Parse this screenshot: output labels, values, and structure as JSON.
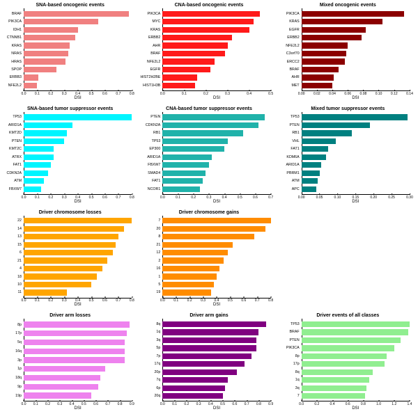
{
  "global": {
    "xlabel": "DSI",
    "background": "#ffffff",
    "title_fontsize": 7,
    "tick_fontsize": 5,
    "label_fontsize": 6,
    "ylabel_fontsize": 5.3
  },
  "panels": [
    {
      "title": "SNA-based oncogenic events",
      "color": "#f08080",
      "xmax": 0.8,
      "xtick_step": 0.1,
      "categories": [
        "BRAF",
        "PIK3CA",
        "IDH1",
        "CTNNB1",
        "KRAS",
        "NRAS",
        "HRAS",
        "SPOP",
        "ERBB3",
        "NFE2L2"
      ],
      "values": [
        0.78,
        0.55,
        0.4,
        0.38,
        0.34,
        0.33,
        0.31,
        0.24,
        0.11,
        0.1
      ]
    },
    {
      "title": "CNA-based oncogenic events",
      "color": "#ff1a1a",
      "xmax": 0.5,
      "xtick_step": 0.1,
      "categories": [
        "PIK3CA",
        "MYC",
        "KRAS",
        "ERBB2",
        "AHR",
        "BRAF",
        "NFE2L2",
        "EGFR",
        "HIST2H2BE",
        "HIST1H3B"
      ],
      "values": [
        0.45,
        0.42,
        0.4,
        0.32,
        0.3,
        0.29,
        0.24,
        0.22,
        0.16,
        0.15
      ]
    },
    {
      "title": "Mixed oncogenic events",
      "color": "#8b0000",
      "xmax": 0.14,
      "xtick_step": 0.02,
      "categories": [
        "PIK3CA",
        "KRAS",
        "EGFR",
        "ERBB2",
        "NFE2L2",
        "C3orf70",
        "ERCC2",
        "BRAF",
        "AHR",
        "MET"
      ],
      "values": [
        0.133,
        0.105,
        0.083,
        0.078,
        0.06,
        0.058,
        0.056,
        0.048,
        0.042,
        0.04
      ]
    },
    {
      "title": "SNA-based tumor suppressor events",
      "color": "#00f5ff",
      "xmax": 0.8,
      "xtick_step": 0.1,
      "categories": [
        "TP53",
        "ARID1A",
        "KMT2D",
        "PTEN",
        "KMT2C",
        "ATRX",
        "FAT1",
        "CDKN2A",
        "ATM",
        "FBXW7"
      ],
      "values": [
        0.8,
        0.36,
        0.32,
        0.3,
        0.22,
        0.22,
        0.2,
        0.18,
        0.15,
        0.13
      ]
    },
    {
      "title": "CNA-based tumor suppressor events",
      "color": "#20b2aa",
      "xmax": 0.7,
      "xtick_step": 0.1,
      "categories": [
        "PTEN",
        "CDKN2A",
        "RB1",
        "TP53",
        "EP300",
        "ARID1A",
        "FBXW7",
        "SMAD4",
        "FAT1",
        "NCOR1"
      ],
      "values": [
        0.66,
        0.62,
        0.52,
        0.42,
        0.4,
        0.32,
        0.3,
        0.28,
        0.26,
        0.24
      ]
    },
    {
      "title": "Mixed tumor suppressor events",
      "color": "#008080",
      "xmax": 0.3,
      "xtick_step": 0.05,
      "categories": [
        "TP53",
        "PTEN",
        "RB1",
        "VHL",
        "FAT1",
        "KDM6A",
        "ARID1A",
        "PBRM1",
        "ATM",
        "APC"
      ],
      "values": [
        0.295,
        0.19,
        0.14,
        0.095,
        0.075,
        0.068,
        0.055,
        0.05,
        0.046,
        0.042
      ]
    },
    {
      "title": "Driver chromosome losses",
      "color": "#ffa500",
      "xmax": 0.8,
      "xtick_step": 0.1,
      "categories": [
        "22",
        "14",
        "13",
        "15",
        "6",
        "21",
        "4",
        "18",
        "10",
        "11"
      ],
      "values": [
        0.8,
        0.74,
        0.7,
        0.68,
        0.66,
        0.62,
        0.58,
        0.54,
        0.5,
        0.32
      ]
    },
    {
      "title": "Driver chromosome gains",
      "color": "#ff8c00",
      "xmax": 0.8,
      "xtick_step": 0.1,
      "categories": [
        "7",
        "20",
        "8",
        "21",
        "12",
        "2",
        "16",
        "1",
        "5",
        "19"
      ],
      "values": [
        0.8,
        0.76,
        0.68,
        0.52,
        0.48,
        0.45,
        0.42,
        0.4,
        0.38,
        0.36
      ]
    },
    {
      "empty": true
    },
    {
      "title": "Driver arm losses",
      "color": "#ee82ee",
      "xmax": 0.9,
      "xtick_step": 0.1,
      "categories": [
        "8p",
        "17p",
        "5q",
        "16q",
        "3p",
        "1p",
        "18q",
        "9p",
        "19p"
      ],
      "values": [
        0.88,
        0.86,
        0.84,
        0.84,
        0.84,
        0.68,
        0.64,
        0.62,
        0.56
      ]
    },
    {
      "title": "Driver arm gains",
      "color": "#800080",
      "xmax": 0.9,
      "xtick_step": 0.1,
      "categories": [
        "8q",
        "1q",
        "3q",
        "5p",
        "7p",
        "17q",
        "20p",
        "7q",
        "6p",
        "20q"
      ],
      "values": [
        0.86,
        0.8,
        0.78,
        0.78,
        0.74,
        0.68,
        0.62,
        0.54,
        0.52,
        0.5
      ]
    },
    {
      "title": "Driver events of all classes",
      "color": "#90ee90",
      "xmax": 1.4,
      "xtick_step": 0.2,
      "categories": [
        "TP53",
        "BRAF",
        "PTEN",
        "PIK3CA",
        "8p",
        "17p",
        "8q",
        "1q",
        "3q",
        "7"
      ],
      "values": [
        1.4,
        1.38,
        1.28,
        1.2,
        1.1,
        1.08,
        0.92,
        0.88,
        0.84,
        0.82
      ]
    }
  ]
}
